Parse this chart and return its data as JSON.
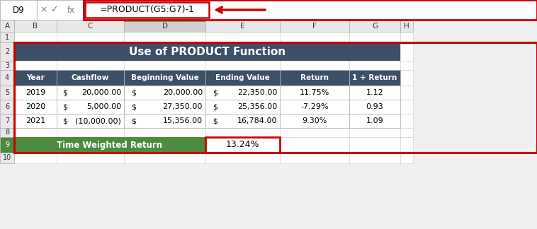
{
  "title": "Use of PRODUCT Function",
  "formula_bar_cell": "D9",
  "formula_bar_text": "=PRODUCT(G5:G7)-1",
  "col_headers": [
    "A",
    "B",
    "C",
    "D",
    "E",
    "F",
    "G",
    "H"
  ],
  "row_headers": [
    "1",
    "2",
    "3",
    "4",
    "5",
    "6",
    "7",
    "8",
    "9",
    "10"
  ],
  "table_headers": [
    "Year",
    "Cashflow",
    "Beginning Value",
    "Ending Value",
    "Return",
    "1 + Return"
  ],
  "table_data": [
    [
      "2019",
      "$    20,000.00",
      "$    20,000.00",
      "$    22,350.00",
      "11.75%",
      "1.12"
    ],
    [
      "2020",
      "$      5,000.00",
      "$    27,350.00",
      "$    25,356.00",
      "-7.29%",
      "0.93"
    ],
    [
      "2021",
      "$  (10,000.00)",
      "$    15,356.00",
      "$    16,784.00",
      "9.30%",
      "1.09"
    ]
  ],
  "cashflow_dollar": [
    "$",
    "$",
    "$"
  ],
  "cashflow_val": [
    "   20,000.00",
    "     5,000.00",
    "  (10,000.00)"
  ],
  "begval_dollar": [
    "$",
    "$",
    "$"
  ],
  "begval_val": [
    "    20,000.00",
    "    27,350.00",
    "    15,356.00"
  ],
  "endval_dollar": [
    "$",
    "$",
    "$"
  ],
  "endval_val": [
    "    22,350.00",
    "    25,356.00",
    "    16,784.00"
  ],
  "twr_label": "Time Weighted Return",
  "twr_value": "13.24%",
  "header_bg": "#3d5068",
  "header_text": "#ffffff",
  "twr_label_bg": "#4e8a3e",
  "twr_label_text": "#ffffff",
  "twr_value_bg": "#ffffff",
  "twr_value_text": "#000000",
  "cell_bg": "#ffffff",
  "cell_border": "#b0b0b0",
  "spreadsheet_bg": "#f0f0f0",
  "formula_bar_bg": "#ffffff",
  "formula_bar_border": "#c0c0c0",
  "red_border": "#cc0000",
  "col_header_bg": "#e8e8e8",
  "col_header_active_bg": "#d0d0d0",
  "col_header_active_top": "#4CAF50",
  "row_header_bg": "#e8e8e8",
  "row_header_active_bg": "#4e8a3e",
  "grid_line": "#d0d0d0",
  "fig_w": 7.58,
  "fig_h": 3.24,
  "dpi": 100
}
